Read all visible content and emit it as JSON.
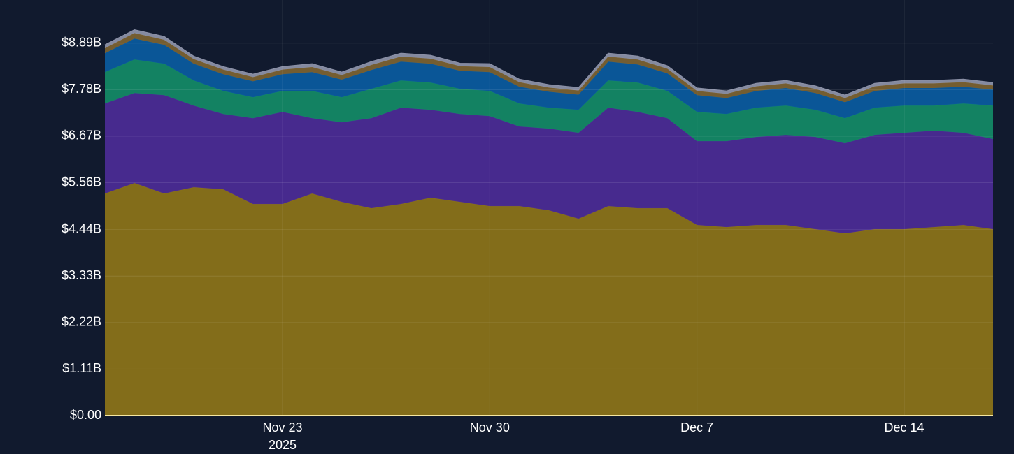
{
  "chart_data": {
    "type": "stacked_area",
    "x": [
      "2025-11-17",
      "2025-11-18",
      "2025-11-19",
      "2025-11-20",
      "2025-11-21",
      "2025-11-22",
      "2025-11-23",
      "2025-11-24",
      "2025-11-25",
      "2025-11-26",
      "2025-11-27",
      "2025-11-28",
      "2025-11-29",
      "2025-11-30",
      "2025-12-01",
      "2025-12-02",
      "2025-12-03",
      "2025-12-04",
      "2025-12-05",
      "2025-12-06",
      "2025-12-07",
      "2025-12-08",
      "2025-12-09",
      "2025-12-10",
      "2025-12-11",
      "2025-12-12",
      "2025-12-13",
      "2025-12-14",
      "2025-12-15",
      "2025-12-16",
      "2025-12-17"
    ],
    "series": [
      {
        "color": "#8a7219",
        "values": [
          5.3,
          5.55,
          5.3,
          5.45,
          5.4,
          5.05,
          5.05,
          5.3,
          5.1,
          4.95,
          5.05,
          5.2,
          5.1,
          5.0,
          5.0,
          4.9,
          4.7,
          5.0,
          4.95,
          4.95,
          4.55,
          4.5,
          4.55,
          4.55,
          4.45,
          4.35,
          4.45,
          4.45,
          4.5,
          4.55,
          4.45
        ]
      },
      {
        "color": "#4b2b94",
        "values": [
          2.15,
          2.15,
          2.35,
          1.95,
          1.8,
          2.05,
          2.2,
          1.8,
          1.9,
          2.15,
          2.3,
          2.1,
          2.1,
          2.15,
          1.9,
          1.95,
          2.05,
          2.35,
          2.3,
          2.15,
          2.0,
          2.05,
          2.1,
          2.15,
          2.2,
          2.15,
          2.25,
          2.3,
          2.3,
          2.2,
          2.15
        ]
      },
      {
        "color": "#148865",
        "values": [
          0.75,
          0.8,
          0.75,
          0.6,
          0.55,
          0.5,
          0.5,
          0.65,
          0.6,
          0.7,
          0.65,
          0.65,
          0.6,
          0.6,
          0.55,
          0.5,
          0.55,
          0.65,
          0.7,
          0.65,
          0.7,
          0.65,
          0.7,
          0.7,
          0.65,
          0.6,
          0.65,
          0.65,
          0.6,
          0.7,
          0.8
        ]
      },
      {
        "color": "#0b5a9d",
        "values": [
          0.45,
          0.5,
          0.45,
          0.4,
          0.4,
          0.38,
          0.4,
          0.45,
          0.42,
          0.45,
          0.45,
          0.45,
          0.43,
          0.45,
          0.4,
          0.38,
          0.36,
          0.45,
          0.43,
          0.42,
          0.4,
          0.38,
          0.4,
          0.42,
          0.4,
          0.38,
          0.4,
          0.42,
          0.42,
          0.4,
          0.38
        ]
      },
      {
        "color": "#7a6132",
        "values": [
          0.12,
          0.13,
          0.12,
          0.11,
          0.11,
          0.1,
          0.11,
          0.12,
          0.11,
          0.12,
          0.12,
          0.12,
          0.11,
          0.12,
          0.11,
          0.1,
          0.1,
          0.12,
          0.12,
          0.11,
          0.1,
          0.1,
          0.11,
          0.11,
          0.1,
          0.1,
          0.11,
          0.11,
          0.11,
          0.11,
          0.1
        ]
      },
      {
        "color": "#8b90a6",
        "values": [
          0.08,
          0.08,
          0.08,
          0.07,
          0.07,
          0.07,
          0.07,
          0.08,
          0.07,
          0.08,
          0.08,
          0.08,
          0.07,
          0.08,
          0.07,
          0.07,
          0.07,
          0.08,
          0.08,
          0.07,
          0.07,
          0.07,
          0.07,
          0.07,
          0.07,
          0.07,
          0.07,
          0.07,
          0.07,
          0.07,
          0.07
        ]
      }
    ],
    "xlim": [
      "2025-11-17",
      "2025-12-17"
    ],
    "xticks": [
      {
        "value": "2025-11-23",
        "label": "Nov 23"
      },
      {
        "value": "2025-11-30",
        "label": "Nov 30"
      },
      {
        "value": "2025-12-07",
        "label": "Dec 7"
      },
      {
        "value": "2025-12-14",
        "label": "Dec 14"
      }
    ],
    "x_year": "2025",
    "ylim": [
      0,
      9.42
    ],
    "yticks": [
      {
        "value": 0,
        "label": "$0.00"
      },
      {
        "value": 1.11,
        "label": "$1.11B"
      },
      {
        "value": 2.22,
        "label": "$2.22B"
      },
      {
        "value": 3.33,
        "label": "$3.33B"
      },
      {
        "value": 4.44,
        "label": "$4.44B"
      },
      {
        "value": 5.56,
        "label": "$5.56B"
      },
      {
        "value": 6.67,
        "label": "$6.67B"
      },
      {
        "value": 7.78,
        "label": "$7.78B"
      },
      {
        "value": 8.89,
        "label": "$8.89B"
      }
    ],
    "grid": true
  }
}
